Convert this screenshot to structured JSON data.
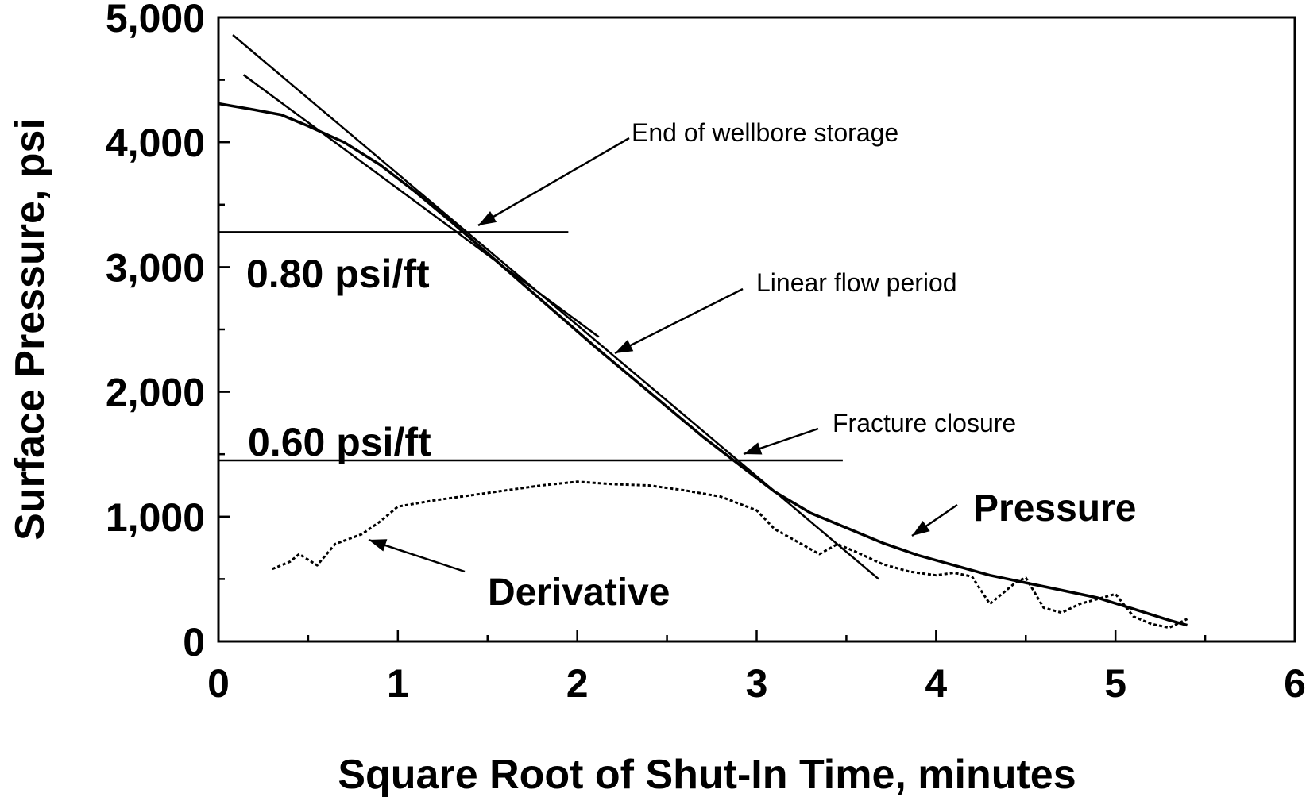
{
  "chart_data": {
    "type": "line",
    "xlabel": "Square Root of Shut-In Time, minutes",
    "ylabel": "Surface Pressure, psi",
    "xlim": [
      0,
      6
    ],
    "ylim": [
      0,
      5000
    ],
    "x_ticks": [
      0,
      1,
      2,
      3,
      4,
      5,
      6
    ],
    "x_tick_labels": [
      "0",
      "1",
      "2",
      "3",
      "4",
      "5",
      "6"
    ],
    "y_ticks": [
      0,
      1000,
      2000,
      3000,
      4000,
      5000
    ],
    "y_tick_labels": [
      "0",
      "1,000",
      "2,000",
      "3,000",
      "4,000",
      "5,000"
    ],
    "grid": false,
    "series": [
      {
        "name": "Pressure",
        "style": "solid",
        "x": [
          0.0,
          0.2,
          0.35,
          0.5,
          0.7,
          0.9,
          1.1,
          1.3,
          1.5,
          1.7,
          1.9,
          2.1,
          2.3,
          2.5,
          2.7,
          2.9,
          3.1,
          3.3,
          3.5,
          3.7,
          3.9,
          4.1,
          4.3,
          4.5,
          4.7,
          4.9,
          5.1,
          5.3,
          5.4
        ],
        "y": [
          4310,
          4260,
          4220,
          4130,
          4000,
          3820,
          3600,
          3360,
          3110,
          2860,
          2610,
          2360,
          2120,
          1880,
          1640,
          1420,
          1200,
          1030,
          910,
          790,
          690,
          610,
          530,
          470,
          410,
          350,
          260,
          170,
          130
        ]
      },
      {
        "name": "Derivative",
        "style": "dotted",
        "x": [
          0.3,
          0.4,
          0.45,
          0.55,
          0.65,
          0.8,
          0.9,
          1.0,
          1.2,
          1.4,
          1.6,
          1.8,
          2.0,
          2.2,
          2.4,
          2.6,
          2.8,
          3.0,
          3.1,
          3.2,
          3.35,
          3.45,
          3.55,
          3.7,
          3.85,
          4.0,
          4.1,
          4.2,
          4.3,
          4.45,
          4.5,
          4.6,
          4.7,
          4.8,
          4.9,
          5.0,
          5.1,
          5.2,
          5.3,
          5.4
        ],
        "y": [
          580,
          640,
          700,
          610,
          780,
          860,
          960,
          1080,
          1130,
          1170,
          1210,
          1250,
          1280,
          1260,
          1250,
          1210,
          1160,
          1050,
          900,
          820,
          700,
          780,
          720,
          620,
          560,
          530,
          550,
          520,
          300,
          480,
          510,
          270,
          230,
          300,
          340,
          380,
          200,
          140,
          110,
          180
        ]
      }
    ],
    "reference_lines": [
      {
        "x": [
          0.0,
          1.95
        ],
        "y": [
          3280,
          3280
        ]
      },
      {
        "x": [
          0.0,
          3.48
        ],
        "y": [
          1450,
          1450
        ]
      },
      {
        "x": [
          0.08,
          3.68
        ],
        "y": [
          4860,
          500
        ]
      },
      {
        "x": [
          0.14,
          2.12
        ],
        "y": [
          4540,
          2440
        ]
      }
    ],
    "annotations": [
      {
        "text": "End of wellbore storage"
      },
      {
        "text": "Linear flow period"
      },
      {
        "text": "Fracture closure"
      },
      {
        "text": "0.80 psi/ft"
      },
      {
        "text": "0.60 psi/ft"
      },
      {
        "text": "Pressure"
      },
      {
        "text": "Derivative"
      }
    ]
  }
}
